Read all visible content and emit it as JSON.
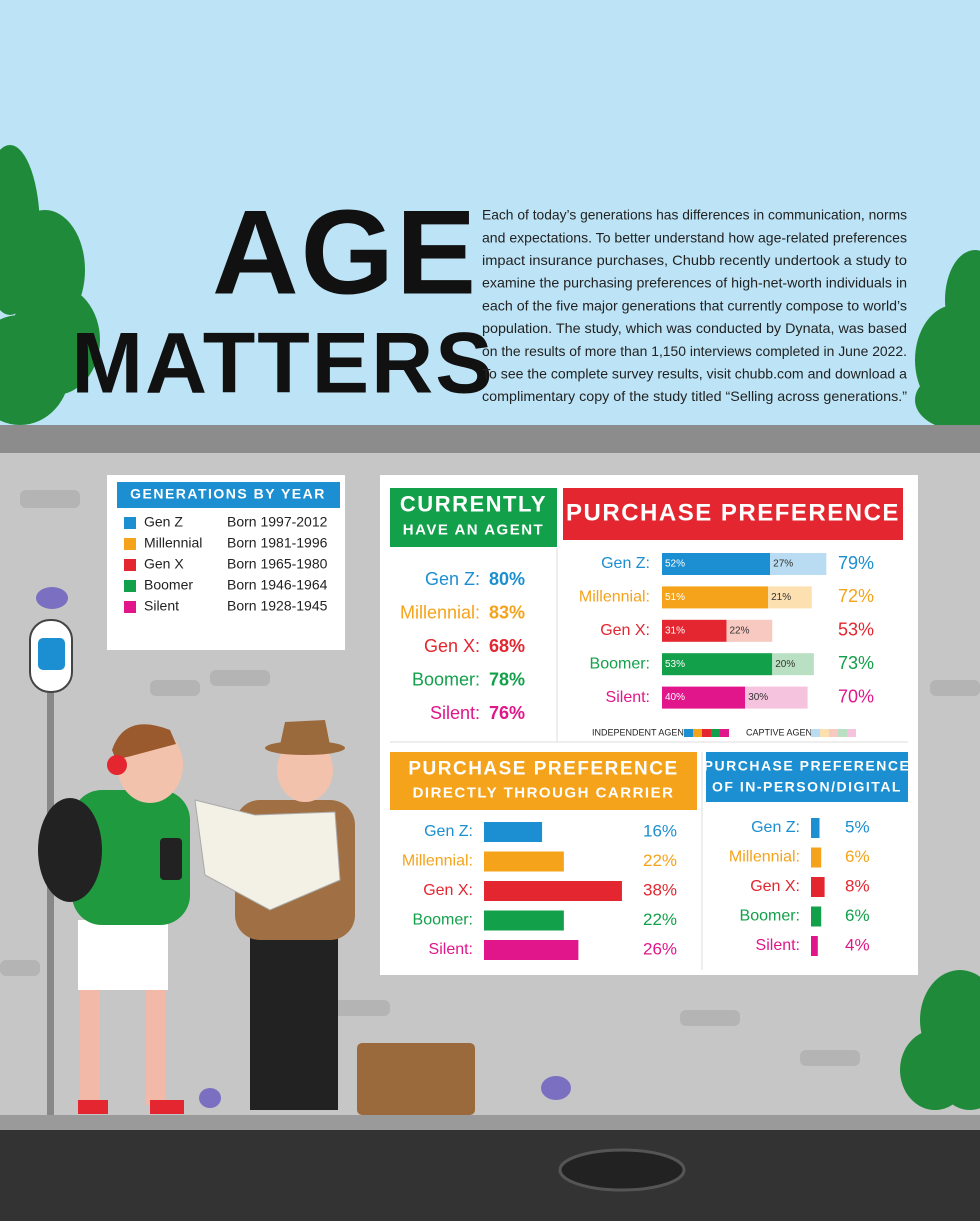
{
  "title": [
    "AGE",
    "MATTERS"
  ],
  "intro": [
    "Each of today’s generations has differences in communication, norms",
    "and expectations. To better understand how age-related preferences",
    "impact insurance purchases, Chubb recently undertook a study to",
    "examine the purchasing preferences of high-net-worth individuals in",
    "each of the five major generations that currently compose to world’s",
    "population. The study, which was conducted by Dynata, was based",
    "on the results of more than 1,150 interviews completed in June 2022.",
    "To see the complete survey results, visit chubb.com and download a",
    "complimentary copy of the study titled “Selling across generations.”"
  ],
  "generations": {
    "title": "GENERATIONS BY YEAR",
    "rows": [
      {
        "name": "Gen Z",
        "born": "Born 1997-2012",
        "color": "#1b8fd1"
      },
      {
        "name": "Millennial",
        "born": "Born 1981-1996",
        "color": "#f5a31a"
      },
      {
        "name": "Gen X",
        "born": "Born 1965-1980",
        "color": "#e3262f"
      },
      {
        "name": "Boomer",
        "born": "Born 1946-1964",
        "color": "#12a04a"
      },
      {
        "name": "Silent",
        "born": "Born 1928-1945",
        "color": "#e0168a"
      }
    ]
  },
  "chart_data": [
    {
      "type": "stats",
      "title": [
        "CURRENTLY",
        "HAVE AN AGENT"
      ],
      "header_color": "#12a04a",
      "categories": [
        "Gen Z:",
        "Millennial:",
        "Gen X:",
        "Boomer:",
        "Silent:"
      ],
      "colors": [
        "#1b8fd1",
        "#f5a31a",
        "#e3262f",
        "#12a04a",
        "#e0168a"
      ],
      "values": [
        80,
        83,
        68,
        78,
        76
      ],
      "value_labels": [
        "80%",
        "83%",
        "68%",
        "78%",
        "76%"
      ]
    },
    {
      "type": "stacked",
      "title": [
        "PURCHASE PREFERENCE"
      ],
      "header_color": "#e3262f",
      "categories": [
        "Gen Z:",
        "Millennial:",
        "Gen X:",
        "Boomer:",
        "Silent:"
      ],
      "colors": [
        "#1b8fd1",
        "#f5a31a",
        "#e3262f",
        "#12a04a",
        "#e0168a"
      ],
      "xlim": [
        0,
        100
      ],
      "series": [
        {
          "name": "INDEPENDENT AGENT",
          "colors": [
            "#1b8fd1",
            "#f5a31a",
            "#e3262f",
            "#12a04a",
            "#e0168a"
          ],
          "values": [
            52,
            51,
            31,
            53,
            40
          ],
          "value_labels": [
            "52%",
            "51%",
            "31%",
            "53%",
            "40%"
          ]
        },
        {
          "name": "CAPTIVE AGENT",
          "colors": [
            "#b9dcf2",
            "#fde0b0",
            "#f7c9c0",
            "#b9e0c3",
            "#f6c3de"
          ],
          "values": [
            27,
            21,
            22,
            20,
            30
          ],
          "value_labels": [
            "27%",
            "21%",
            "22%",
            "20%",
            "30%"
          ]
        }
      ],
      "totals": [
        79,
        72,
        53,
        73,
        70
      ],
      "total_labels": [
        "79%",
        "72%",
        "53%",
        "73%",
        "70%"
      ]
    },
    {
      "type": "bar",
      "title": [
        "PURCHASE PREFERENCE",
        "DIRECTLY THROUGH CARRIER"
      ],
      "header_color": "#f5a31a",
      "categories": [
        "Gen Z:",
        "Millennial:",
        "Gen X:",
        "Boomer:",
        "Silent:"
      ],
      "colors": [
        "#1b8fd1",
        "#f5a31a",
        "#e3262f",
        "#12a04a",
        "#e0168a"
      ],
      "xlim": [
        0,
        100
      ],
      "values": [
        16,
        22,
        38,
        22,
        26
      ],
      "value_labels": [
        "16%",
        "22%",
        "38%",
        "22%",
        "26%"
      ]
    },
    {
      "type": "bar",
      "title": [
        "PURCHASE PREFERENCE",
        "OF IN-PERSON/DIGITAL"
      ],
      "header_color": "#1b8fd1",
      "categories": [
        "Gen Z:",
        "Millennial:",
        "Gen X:",
        "Boomer:",
        "Silent:"
      ],
      "colors": [
        "#1b8fd1",
        "#f5a31a",
        "#e3262f",
        "#12a04a",
        "#e0168a"
      ],
      "xlim": [
        0,
        100
      ],
      "values": [
        5,
        6,
        8,
        6,
        4
      ],
      "value_labels": [
        "5%",
        "6%",
        "8%",
        "6%",
        "4%"
      ]
    }
  ]
}
